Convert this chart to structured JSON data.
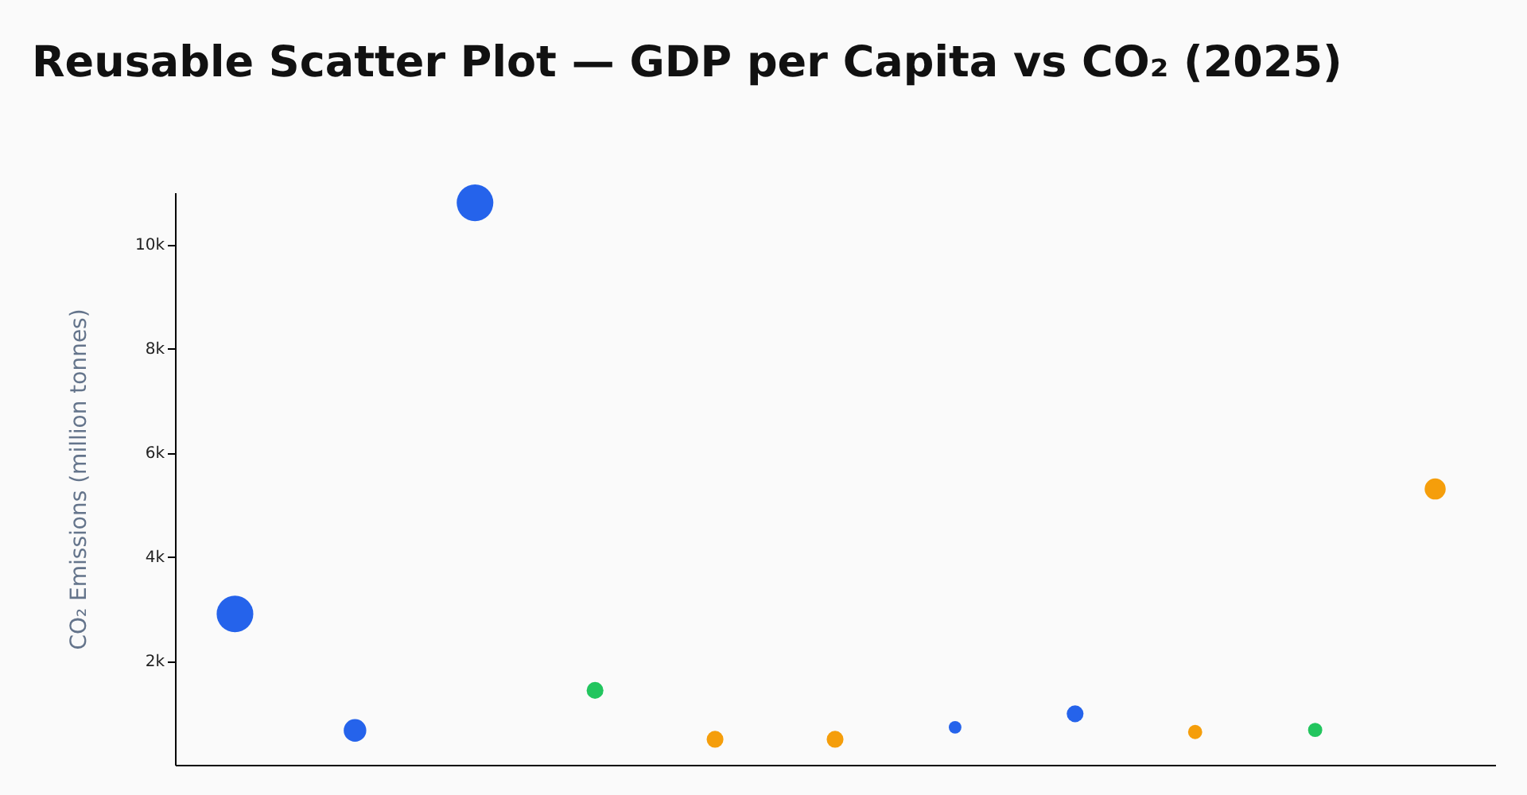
{
  "chart_data": {
    "type": "bubble",
    "title": "Reusable Scatter Plot — GDP per Capita vs CO₂ (2025)",
    "ylabel": "CO₂ Emissions (million tonnes)",
    "categories": [
      null,
      null,
      null,
      null,
      null,
      null,
      null,
      null,
      null,
      null,
      null
    ],
    "ylim": [
      0,
      11000
    ],
    "yticks": [
      {
        "value": 2000,
        "label": "2k"
      },
      {
        "value": 4000,
        "label": "4k"
      },
      {
        "value": 6000,
        "label": "6k"
      },
      {
        "value": 8000,
        "label": "8k"
      },
      {
        "value": 10000,
        "label": "10k"
      }
    ],
    "tick_labels": "y",
    "grid": false,
    "series": [
      {
        "color": "#2563eb",
        "values": [
          2900,
          660,
          10800,
          null,
          null,
          null,
          720,
          980,
          null,
          null,
          null
        ],
        "sizes": [
          1,
          0.38,
          1,
          null,
          null,
          null,
          0.12,
          0.21,
          null,
          null,
          null
        ]
      },
      {
        "color": "#22c55e",
        "values": [
          null,
          null,
          null,
          1430,
          null,
          null,
          null,
          null,
          null,
          670,
          null
        ],
        "sizes": [
          null,
          null,
          null,
          0.21,
          null,
          null,
          null,
          null,
          null,
          0.15,
          null
        ]
      },
      {
        "color": "#f59e0b",
        "values": [
          null,
          null,
          null,
          null,
          490,
          490,
          null,
          null,
          630,
          null,
          5300
        ],
        "sizes": [
          null,
          null,
          null,
          null,
          0.21,
          0.21,
          null,
          null,
          0.15,
          null,
          0.33
        ]
      }
    ]
  }
}
